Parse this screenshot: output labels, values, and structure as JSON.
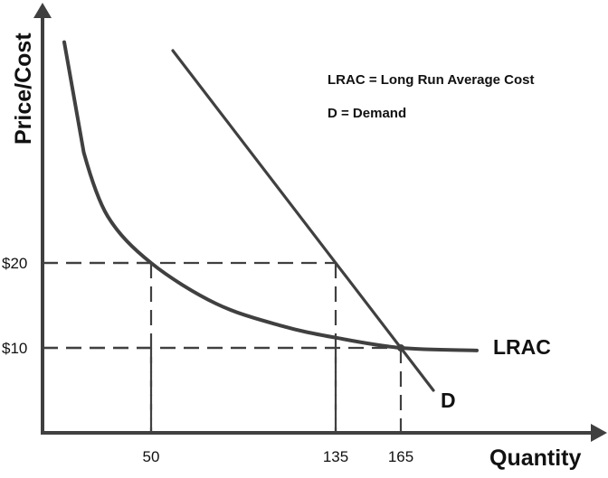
{
  "chart_data": {
    "type": "line",
    "xlabel": "Quantity",
    "ylabel": "Price/Cost",
    "xlim": [
      0,
      260
    ],
    "ylim": [
      0,
      50
    ],
    "x_ticks": [
      {
        "value": 50,
        "label": "50"
      },
      {
        "value": 135,
        "label": "135"
      },
      {
        "value": 165,
        "label": "165"
      }
    ],
    "y_ticks": [
      {
        "value": 20,
        "label": "$20"
      },
      {
        "value": 10,
        "label": "$10"
      }
    ],
    "grid": false,
    "legend_placement": "top-right",
    "legend": [
      "LRAC = Long Run Average Cost",
      "D = Demand"
    ],
    "series": [
      {
        "name": "LRAC",
        "x": [
          10,
          19,
          30,
          50,
          80,
          110,
          135,
          165,
          200
        ],
        "y": [
          46,
          33,
          25.5,
          20,
          15.2,
          12.6,
          11.2,
          10,
          9.7
        ]
      },
      {
        "name": "D",
        "x": [
          60,
          180
        ],
        "y": [
          45,
          5
        ]
      }
    ],
    "guides": [
      {
        "x": 50,
        "y": 20
      },
      {
        "x": 135,
        "y": 20
      },
      {
        "x": 165,
        "y": 10
      },
      {
        "x": 50,
        "y": 10
      },
      {
        "x": 135,
        "y": 10
      }
    ],
    "color": "#404040"
  }
}
